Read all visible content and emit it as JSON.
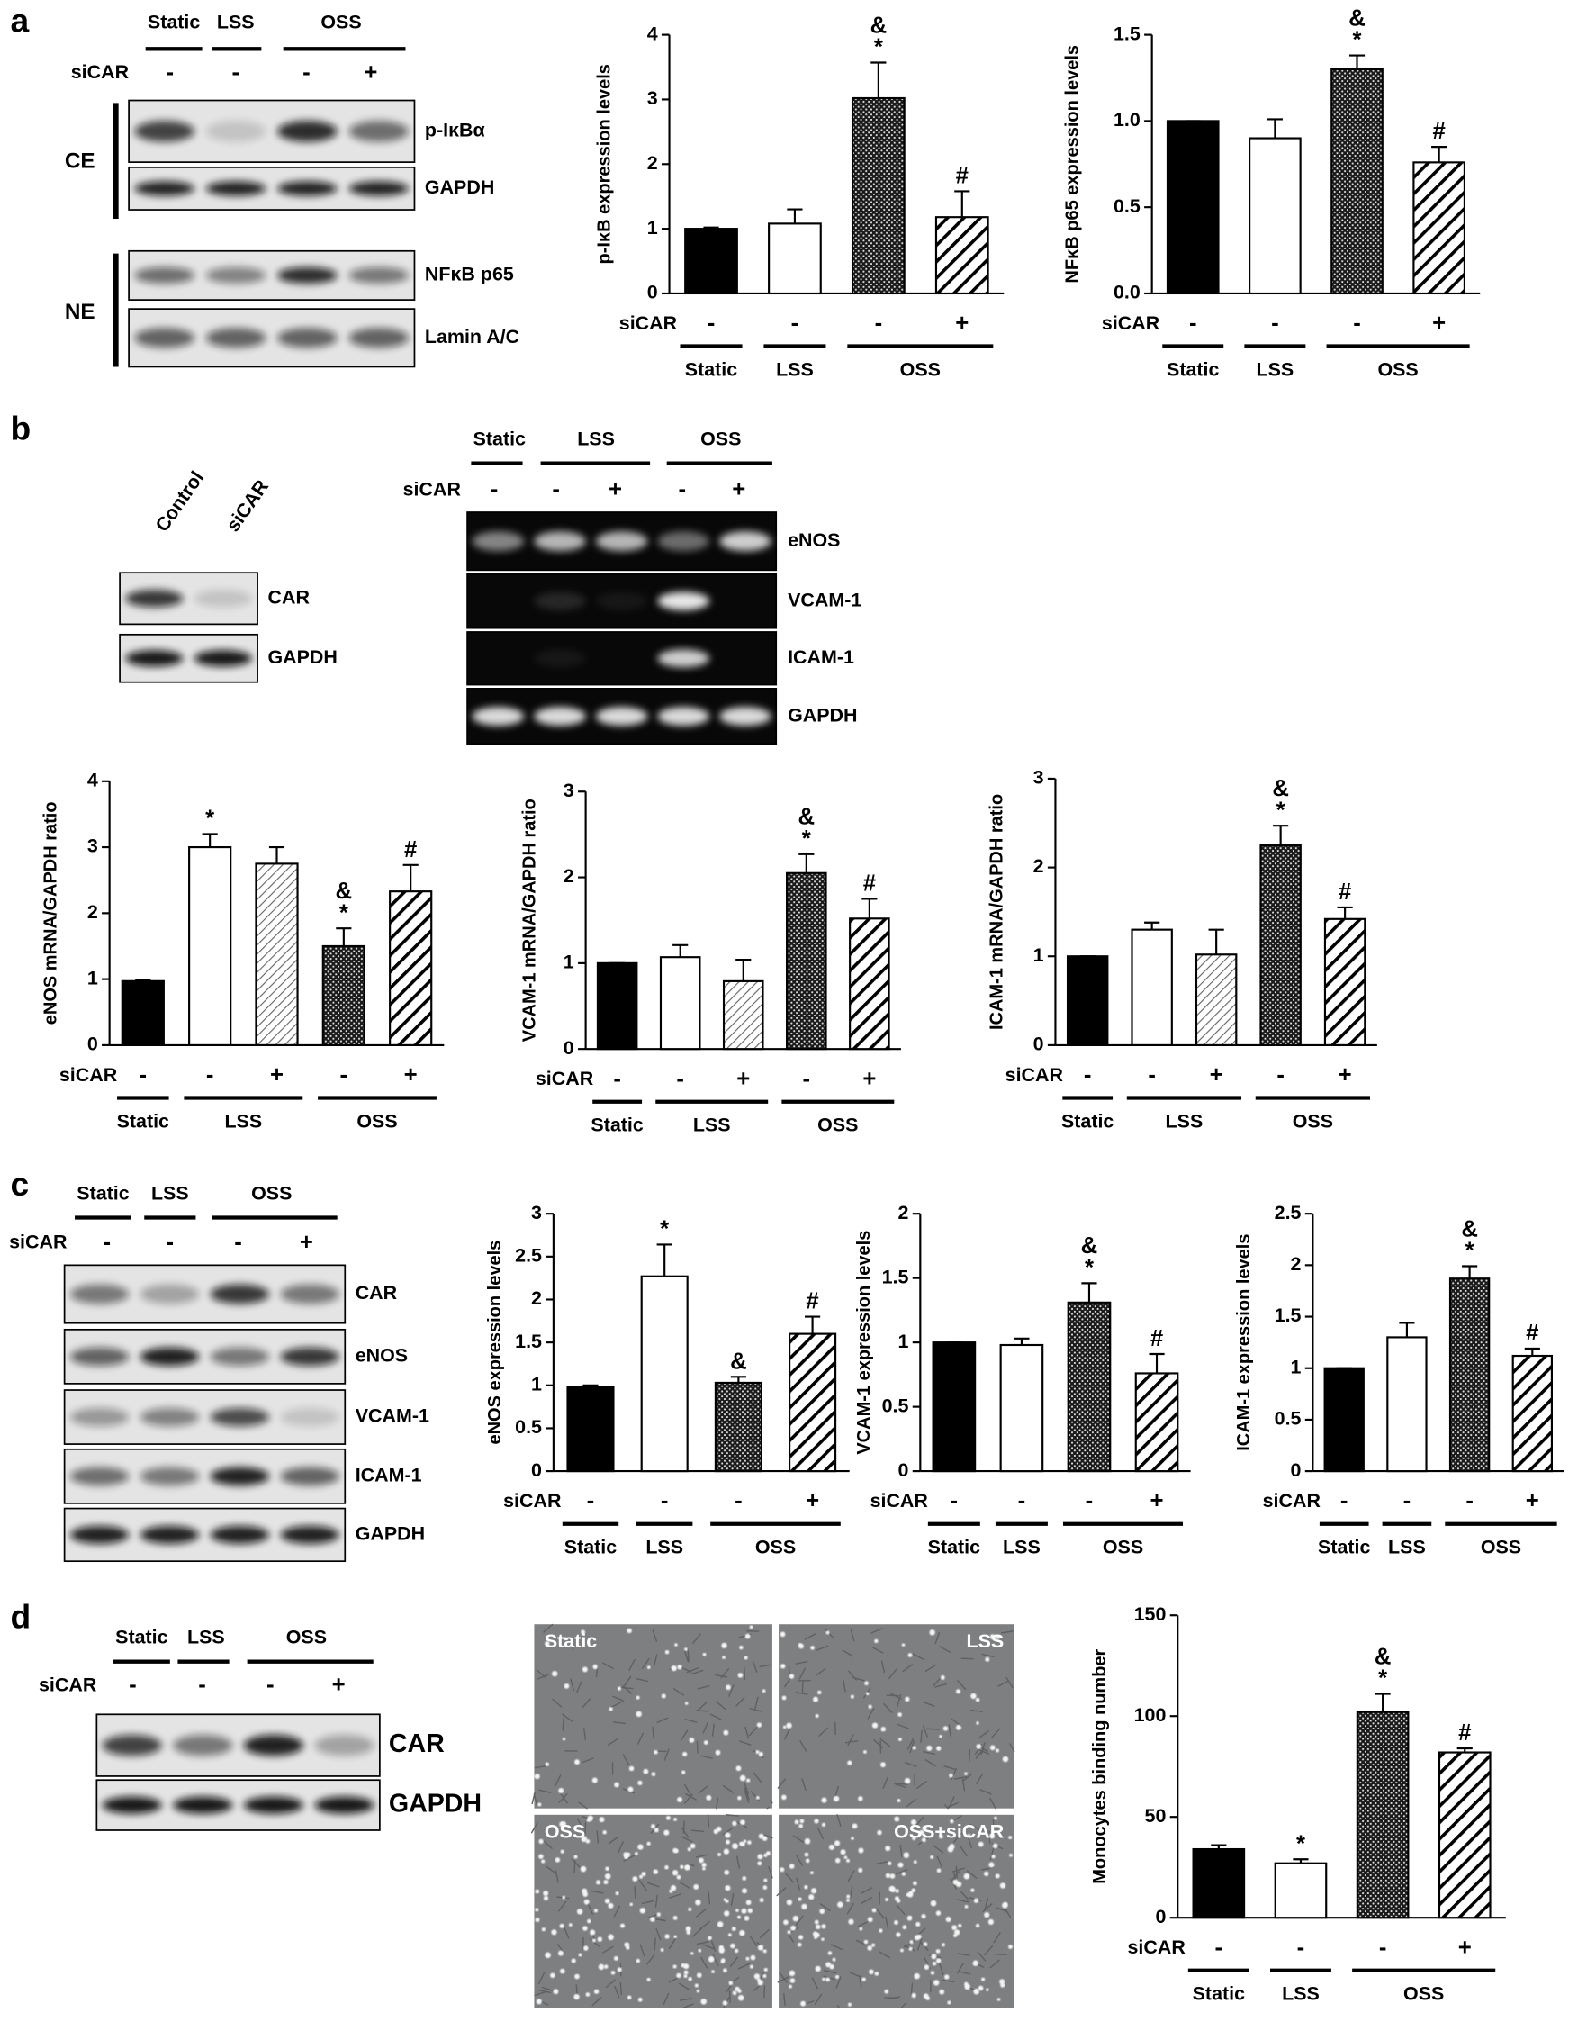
{
  "panel_labels": [
    "a",
    "b",
    "c",
    "d"
  ],
  "blots": [
    {
      "groups": [
        "Static",
        "LSS",
        "OSS"
      ],
      "sicar_label": "siCAR",
      "sicar": [
        "-",
        "-",
        "-",
        "+"
      ],
      "bands": [
        "p-IκBα",
        "GAPDH",
        "NFκB p65",
        "Lamin A/C"
      ],
      "fractions": [
        "CE",
        "NE"
      ]
    },
    {
      "lanes": [
        "Control",
        "siCAR"
      ],
      "bands": [
        "CAR",
        "GAPDH"
      ]
    },
    {
      "groups": [
        "Static",
        "LSS",
        "OSS"
      ],
      "sicar_label": "siCAR",
      "sicar": [
        "-",
        "-",
        "+",
        "-",
        "+"
      ],
      "bands": [
        "eNOS",
        "VCAM-1",
        "ICAM-1",
        "GAPDH"
      ]
    },
    {
      "groups": [
        "Static",
        "LSS",
        "OSS"
      ],
      "sicar_label": "siCAR",
      "sicar": [
        "-",
        "-",
        "-",
        "+"
      ],
      "bands": [
        "CAR",
        "eNOS",
        "VCAM-1",
        "ICAM-1",
        "GAPDH"
      ]
    },
    {
      "groups": [
        "Static",
        "LSS",
        "OSS"
      ],
      "sicar_label": "siCAR",
      "sicar": [
        "-",
        "-",
        "-",
        "+"
      ],
      "bands": [
        "CAR",
        "GAPDH"
      ]
    }
  ],
  "micrographs": [
    "Static",
    "LSS",
    "OSS",
    "OSS+siCAR"
  ],
  "chart_data": [
    {
      "type": "bar",
      "y_label": "p-IκB expression levels",
      "ylim": [
        0,
        4
      ],
      "yticks": [
        0,
        1,
        2,
        3,
        4
      ],
      "values": [
        1,
        1.08,
        3.02,
        1.18
      ],
      "errors": [
        0.02,
        0.22,
        0.55,
        0.4
      ],
      "patterns": [
        "solid",
        "white",
        "dots",
        "hatch"
      ],
      "sicar_label": "siCAR",
      "sicar": [
        "-",
        "-",
        "-",
        "+"
      ],
      "groups": [
        {
          "label": "Static",
          "bars": 1
        },
        {
          "label": "LSS",
          "bars": 1
        },
        {
          "label": "OSS",
          "bars": 2
        }
      ],
      "annotations": [
        {
          "bar": 2,
          "lines": [
            "&",
            "*"
          ]
        },
        {
          "bar": 3,
          "lines": [
            "#"
          ]
        }
      ]
    },
    {
      "type": "bar",
      "y_label": "NFκB p65 expression levels",
      "ylim": [
        0,
        1.5
      ],
      "yticks": [
        {
          "value": 0,
          "label": "0.0"
        },
        0.5,
        {
          "value": 1,
          "label": "1.0"
        },
        1.5
      ],
      "values": [
        1,
        0.9,
        1.3,
        0.76
      ],
      "errors": [
        0,
        0.11,
        0.08,
        0.09
      ],
      "patterns": [
        "solid",
        "white",
        "dots",
        "hatch"
      ],
      "sicar_label": "siCAR",
      "sicar": [
        "-",
        "-",
        "-",
        "+"
      ],
      "groups": [
        {
          "label": "Static",
          "bars": 1
        },
        {
          "label": "LSS",
          "bars": 1
        },
        {
          "label": "OSS",
          "bars": 2
        }
      ],
      "annotations": [
        {
          "bar": 2,
          "lines": [
            "&",
            "*"
          ]
        },
        {
          "bar": 3,
          "lines": [
            "#"
          ]
        }
      ]
    },
    {
      "type": "bar",
      "y_label": "eNOS mRNA/GAPDH  ratio",
      "ylim": [
        0,
        4
      ],
      "yticks": [
        0,
        1,
        2,
        3,
        4
      ],
      "values": [
        0.97,
        3.0,
        2.75,
        1.5,
        2.33
      ],
      "errors": [
        0.02,
        0.2,
        0.25,
        0.27,
        0.4
      ],
      "patterns": [
        "solid",
        "white",
        "light-hatch",
        "dots",
        "hatch"
      ],
      "sicar_label": "siCAR",
      "sicar": [
        "-",
        "-",
        "+",
        "-",
        "+"
      ],
      "groups": [
        {
          "label": "Static",
          "bars": 1
        },
        {
          "label": "LSS",
          "bars": 2
        },
        {
          "label": "OSS",
          "bars": 2
        }
      ],
      "annotations": [
        {
          "bar": 1,
          "lines": [
            "*"
          ]
        },
        {
          "bar": 3,
          "lines": [
            "&",
            "*"
          ]
        },
        {
          "bar": 4,
          "lines": [
            "#"
          ]
        }
      ]
    },
    {
      "type": "bar",
      "y_label": "VCAM-1 mRNA/GAPDH  ratio",
      "ylim": [
        0,
        3
      ],
      "yticks": [
        0,
        1,
        2,
        3
      ],
      "values": [
        1,
        1.07,
        0.79,
        2.05,
        1.52
      ],
      "errors": [
        0,
        0.14,
        0.25,
        0.22,
        0.23
      ],
      "patterns": [
        "solid",
        "white",
        "light-hatch",
        "dots",
        "hatch"
      ],
      "sicar_label": "siCAR",
      "sicar": [
        "-",
        "-",
        "+",
        "-",
        "+"
      ],
      "groups": [
        {
          "label": "Static",
          "bars": 1
        },
        {
          "label": "LSS",
          "bars": 2
        },
        {
          "label": "OSS",
          "bars": 2
        }
      ],
      "annotations": [
        {
          "bar": 3,
          "lines": [
            "&",
            "*"
          ]
        },
        {
          "bar": 4,
          "lines": [
            "#"
          ]
        }
      ]
    },
    {
      "type": "bar",
      "y_label": "ICAM-1 mRNA/GAPDH  ratio",
      "ylim": [
        0,
        3
      ],
      "yticks": [
        0,
        1,
        2,
        3
      ],
      "values": [
        1,
        1.3,
        1.02,
        2.25,
        1.42
      ],
      "errors": [
        0,
        0.08,
        0.28,
        0.22,
        0.13
      ],
      "patterns": [
        "solid",
        "white",
        "light-hatch",
        "dots",
        "hatch"
      ],
      "sicar_label": "siCAR",
      "sicar": [
        "-",
        "-",
        "+",
        "-",
        "+"
      ],
      "groups": [
        {
          "label": "Static",
          "bars": 1
        },
        {
          "label": "LSS",
          "bars": 2
        },
        {
          "label": "OSS",
          "bars": 2
        }
      ],
      "annotations": [
        {
          "bar": 3,
          "lines": [
            "&",
            "*"
          ]
        },
        {
          "bar": 4,
          "lines": [
            "#"
          ]
        }
      ]
    },
    {
      "type": "bar",
      "y_label": "eNOS expression levels",
      "ylim": [
        0,
        3
      ],
      "yticks": [
        0,
        0.5,
        1,
        1.5,
        2,
        2.5,
        3
      ],
      "values": [
        0.98,
        2.27,
        1.03,
        1.6
      ],
      "errors": [
        0.02,
        0.37,
        0.07,
        0.2
      ],
      "patterns": [
        "solid",
        "white",
        "dots",
        "hatch"
      ],
      "sicar_label": "siCAR",
      "sicar": [
        "-",
        "-",
        "-",
        "+"
      ],
      "groups": [
        {
          "label": "Static",
          "bars": 1
        },
        {
          "label": "LSS",
          "bars": 1
        },
        {
          "label": "OSS",
          "bars": 2
        }
      ],
      "annotations": [
        {
          "bar": 1,
          "lines": [
            "*"
          ]
        },
        {
          "bar": 2,
          "lines": [
            "&"
          ]
        },
        {
          "bar": 3,
          "lines": [
            "#"
          ]
        }
      ]
    },
    {
      "type": "bar",
      "y_label": "VCAM-1 expression levels",
      "ylim": [
        0,
        2
      ],
      "yticks": [
        0,
        0.5,
        1,
        1.5,
        2
      ],
      "values": [
        1,
        0.98,
        1.31,
        0.76
      ],
      "errors": [
        0,
        0.05,
        0.15,
        0.15
      ],
      "patterns": [
        "solid",
        "white",
        "dots",
        "hatch"
      ],
      "sicar_label": "siCAR",
      "sicar": [
        "-",
        "-",
        "-",
        "+"
      ],
      "groups": [
        {
          "label": "Static",
          "bars": 1
        },
        {
          "label": "LSS",
          "bars": 1
        },
        {
          "label": "OSS",
          "bars": 2
        }
      ],
      "annotations": [
        {
          "bar": 2,
          "lines": [
            "&",
            "*"
          ]
        },
        {
          "bar": 3,
          "lines": [
            "#"
          ]
        }
      ]
    },
    {
      "type": "bar",
      "y_label": "ICAM-1 expression levels",
      "ylim": [
        0,
        2.5
      ],
      "yticks": [
        0,
        0.5,
        1,
        1.5,
        2,
        2.5
      ],
      "values": [
        1,
        1.3,
        1.87,
        1.12
      ],
      "errors": [
        0,
        0.14,
        0.12,
        0.07
      ],
      "patterns": [
        "solid",
        "white",
        "dots",
        "hatch"
      ],
      "sicar_label": "siCAR",
      "sicar": [
        "-",
        "-",
        "-",
        "+"
      ],
      "groups": [
        {
          "label": "Static",
          "bars": 1
        },
        {
          "label": "LSS",
          "bars": 1
        },
        {
          "label": "OSS",
          "bars": 2
        }
      ],
      "annotations": [
        {
          "bar": 2,
          "lines": [
            "&",
            "*"
          ]
        },
        {
          "bar": 3,
          "lines": [
            "#"
          ]
        }
      ]
    },
    {
      "type": "bar",
      "y_label": "Monocytes binding number",
      "ylim": [
        0,
        150
      ],
      "yticks": [
        0,
        50,
        100,
        150
      ],
      "values": [
        34,
        27,
        102,
        82
      ],
      "errors": [
        2,
        2,
        9,
        2
      ],
      "patterns": [
        "solid",
        "white",
        "dots",
        "hatch"
      ],
      "sicar_label": "siCAR",
      "sicar": [
        "-",
        "-",
        "-",
        "+"
      ],
      "groups": [
        {
          "label": "Static",
          "bars": 1
        },
        {
          "label": "LSS",
          "bars": 1
        },
        {
          "label": "OSS",
          "bars": 2
        }
      ],
      "annotations": [
        {
          "bar": 1,
          "lines": [
            "*"
          ]
        },
        {
          "bar": 2,
          "lines": [
            "&",
            "*"
          ]
        },
        {
          "bar": 3,
          "lines": [
            "#"
          ]
        }
      ]
    }
  ]
}
